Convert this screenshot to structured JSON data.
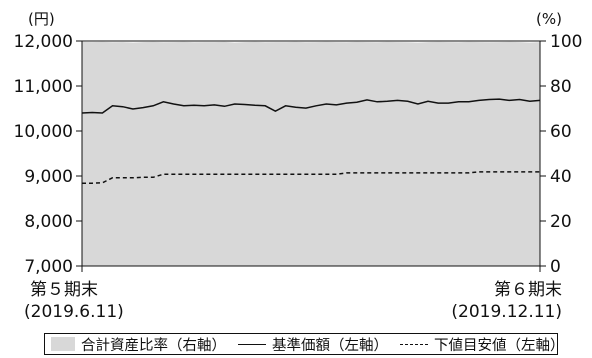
{
  "chart_data": {
    "type": "line",
    "left_unit": "(円)",
    "right_unit": "(%)",
    "left_axis": {
      "min": 7000,
      "max": 12000,
      "ticks": [
        "7,000",
        "8,000",
        "9,000",
        "10,000",
        "11,000",
        "12,000"
      ],
      "tick_values": [
        7000,
        8000,
        9000,
        10000,
        11000,
        12000
      ]
    },
    "right_axis": {
      "min": 0,
      "max": 100,
      "ticks": [
        "0",
        "20",
        "40",
        "60",
        "80",
        "100"
      ],
      "tick_values": [
        0,
        20,
        40,
        60,
        80,
        100
      ]
    },
    "x_start": {
      "line1": "第５期末",
      "line2": "(2019.6.11)"
    },
    "x_end": {
      "line1": "第６期末",
      "line2": "(2019.12.11)"
    },
    "series": [
      {
        "name": "合計資産比率（右軸）",
        "kind": "area",
        "axis": "right",
        "color": "#d8d8d8",
        "values": [
          99.6,
          99.5,
          99.6,
          99.4,
          99.5,
          99.3,
          99.5,
          99.6,
          99.4,
          99.5,
          99.6,
          99.4,
          99.5,
          99.5,
          99.6,
          99.3,
          99.5,
          99.6,
          99.4,
          99.5,
          99.5,
          99.6,
          99.4,
          99.5,
          99.6,
          99.5,
          99.4,
          99.6,
          99.5,
          99.4,
          99.6,
          99.5,
          99.4,
          99.3,
          99.5,
          99.6,
          99.5,
          99.4,
          99.6,
          99.5,
          99.4,
          99.5,
          99.6,
          99.5,
          99.3,
          99.5
        ]
      },
      {
        "name": "基準価額（左軸）",
        "kind": "line",
        "axis": "left",
        "color": "#111111",
        "values": [
          10400,
          10410,
          10400,
          10560,
          10540,
          10490,
          10520,
          10560,
          10650,
          10600,
          10560,
          10570,
          10560,
          10580,
          10550,
          10600,
          10590,
          10570,
          10560,
          10440,
          10560,
          10530,
          10510,
          10560,
          10600,
          10580,
          10620,
          10640,
          10690,
          10650,
          10660,
          10680,
          10660,
          10600,
          10660,
          10620,
          10620,
          10650,
          10650,
          10680,
          10700,
          10710,
          10680,
          10700,
          10660,
          10680
        ]
      },
      {
        "name": "下値目安値（左軸）",
        "kind": "dashed",
        "axis": "left",
        "color": "#111111",
        "values": [
          8840,
          8840,
          8850,
          8960,
          8960,
          8960,
          8970,
          8970,
          9040,
          9040,
          9040,
          9040,
          9040,
          9040,
          9040,
          9040,
          9040,
          9040,
          9040,
          9040,
          9040,
          9040,
          9040,
          9040,
          9040,
          9040,
          9070,
          9070,
          9070,
          9070,
          9070,
          9070,
          9070,
          9070,
          9070,
          9070,
          9070,
          9070,
          9070,
          9090,
          9090,
          9090,
          9090,
          9090,
          9090,
          9090
        ]
      }
    ],
    "legend_position": "bottom"
  }
}
